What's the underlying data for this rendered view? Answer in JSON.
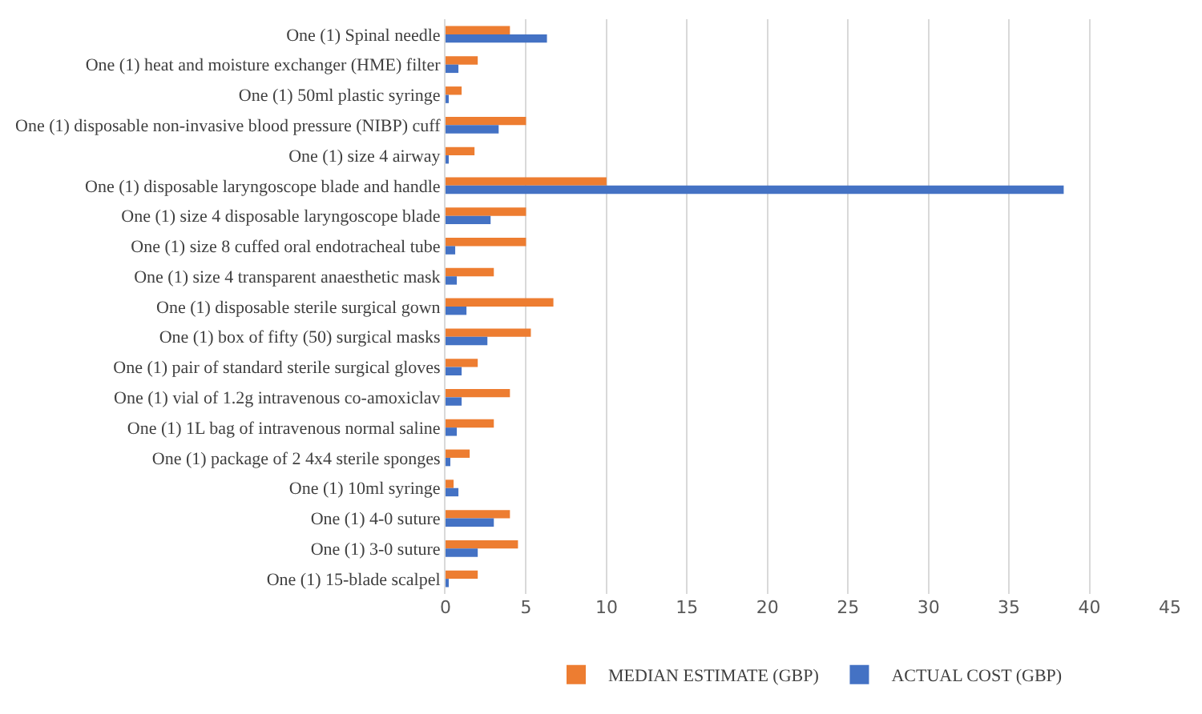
{
  "chart_data": {
    "type": "bar",
    "orientation": "horizontal",
    "categories": [
      "One (1) Spinal needle",
      "One (1) heat and moisture exchanger (HME) filter",
      "One (1) 50ml plastic syringe",
      "One (1) disposable non-invasive blood pressure (NIBP) cuff",
      "One (1) size 4 airway",
      "One (1) disposable laryngoscope blade and handle",
      "One (1) size 4 disposable laryngoscope blade",
      "One (1) size 8 cuffed oral endotracheal tube",
      "One (1) size 4 transparent anaesthetic mask",
      "One (1) disposable sterile surgical gown",
      "One (1) box of fifty (50) surgical masks",
      "One (1) pair of standard sterile surgical gloves",
      "One (1) vial of 1.2g intravenous co-amoxiclav",
      "One (1) 1L bag of intravenous normal saline",
      "One (1) package of 2 4x4 sterile sponges",
      "One (1) 10ml syringe",
      "One (1) 4-0 suture",
      "One (1) 3-0 suture",
      "One (1) 15-blade scalpel"
    ],
    "series": [
      {
        "name": "MEDIAN ESTIMATE (GBP)",
        "color": "#ed7d31",
        "values": [
          4.0,
          2.0,
          1.0,
          5.0,
          1.8,
          10.0,
          5.0,
          5.0,
          3.0,
          6.7,
          5.3,
          2.0,
          4.0,
          3.0,
          1.5,
          0.5,
          4.0,
          4.5,
          2.0
        ]
      },
      {
        "name": "ACTUAL COST (GBP)",
        "color": "#4472c4",
        "values": [
          6.3,
          0.8,
          0.2,
          3.3,
          0.2,
          38.4,
          2.8,
          0.6,
          0.7,
          1.3,
          2.6,
          1.0,
          1.0,
          0.7,
          0.3,
          0.8,
          3.0,
          2.0,
          0.2
        ]
      }
    ],
    "xlim": [
      0,
      45
    ],
    "xticks": [
      0,
      5,
      10,
      15,
      20,
      25,
      30,
      35,
      40,
      45
    ],
    "grid": "x",
    "legend": "bottom"
  }
}
